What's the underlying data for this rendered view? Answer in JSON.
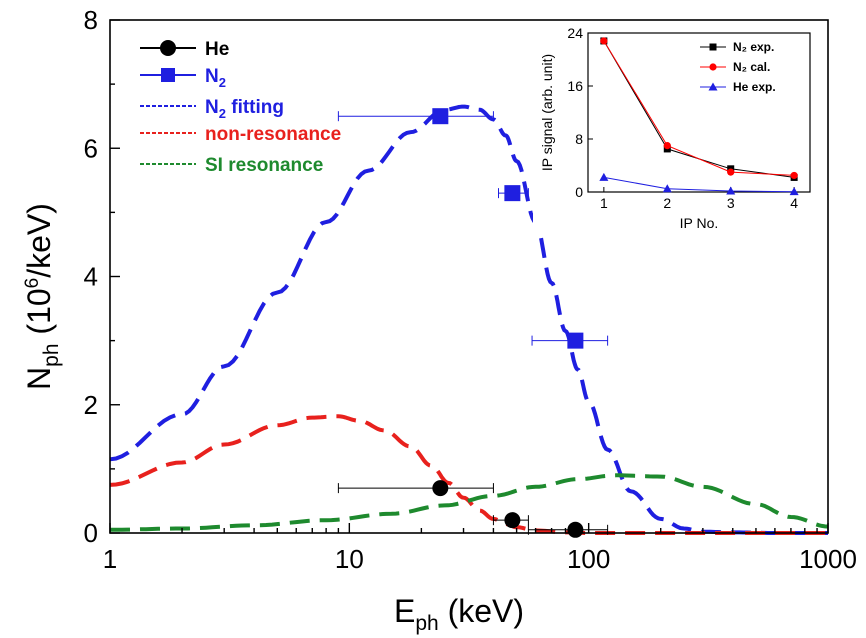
{
  "chart_data": [
    {
      "type": "scatter",
      "xlabel": {
        "main": "E",
        "sub": "ph",
        "unit": " (keV)"
      },
      "ylabel": {
        "main": "N",
        "sub": "ph",
        "unit_pre": " (10",
        "unit_sup": "6",
        "unit_post": "/keV)"
      },
      "xscale": "log",
      "xlim": [
        1,
        1000
      ],
      "ylim": [
        0,
        8
      ],
      "xticks": [
        1,
        10,
        100,
        1000
      ],
      "xtick_labels": [
        "1",
        "10",
        "100",
        "1000"
      ],
      "yticks": [
        0,
        2,
        4,
        6,
        8
      ],
      "ytick_labels": [
        "0",
        "2",
        "4",
        "6",
        "8"
      ],
      "grid": false,
      "legend_position": "top-left",
      "legend": [
        {
          "key": "he",
          "label": "He",
          "sub": "",
          "color": "#000000",
          "style": "line-marker",
          "marker": "circle"
        },
        {
          "key": "n2",
          "label": "N",
          "sub": "2",
          "color": "#1f1fe0",
          "style": "line-marker",
          "marker": "square"
        },
        {
          "key": "n2fit",
          "label": "N",
          "sub": "2",
          "suffix": " fitting",
          "color": "#1f1fe0",
          "style": "dashed"
        },
        {
          "key": "nonres",
          "label": "non-resonance",
          "sub": "",
          "color": "#e8211d",
          "style": "dashed"
        },
        {
          "key": "si",
          "label": "SI resonance",
          "sub": "",
          "color": "#1e8a2e",
          "style": "dashed"
        }
      ],
      "series": [
        {
          "key": "he",
          "kind": "points",
          "marker": "circle",
          "color": "#000000",
          "points": [
            {
              "x": 24,
              "y": 0.7,
              "xerr": [
                9,
                40
              ]
            },
            {
              "x": 48,
              "y": 0.2,
              "xerr": [
                40,
                56
              ]
            },
            {
              "x": 88,
              "y": 0.05,
              "xerr": [
                56,
                120
              ]
            }
          ]
        },
        {
          "key": "n2",
          "kind": "points",
          "marker": "square",
          "color": "#1f1fe0",
          "points": [
            {
              "x": 24,
              "y": 6.5,
              "xerr": [
                9,
                40
              ]
            },
            {
              "x": 48,
              "y": 5.3,
              "xerr": [
                42,
                56
              ]
            },
            {
              "x": 88,
              "y": 3.0,
              "xerr": [
                58,
                120
              ]
            }
          ]
        },
        {
          "key": "n2fit",
          "kind": "curve",
          "color": "#1f1fe0",
          "x": [
            1,
            2,
            3,
            5,
            8,
            12,
            18,
            25,
            30,
            35,
            40,
            45,
            50,
            60,
            70,
            80,
            90,
            100,
            120,
            150,
            200,
            250,
            300,
            400,
            600,
            1000
          ],
          "y": [
            1.15,
            1.85,
            2.6,
            3.75,
            4.85,
            5.65,
            6.25,
            6.6,
            6.65,
            6.6,
            6.45,
            6.2,
            5.8,
            4.85,
            3.9,
            3.15,
            2.55,
            2.05,
            1.3,
            0.65,
            0.22,
            0.07,
            0.02,
            0.01,
            0.0,
            0.0
          ]
        },
        {
          "key": "nonres",
          "kind": "curve",
          "color": "#e8211d",
          "x": [
            1,
            2,
            3,
            5,
            7,
            9,
            11,
            14,
            18,
            22,
            26,
            30,
            35,
            40,
            45,
            50,
            60,
            80,
            100,
            200,
            1000
          ],
          "y": [
            0.75,
            1.1,
            1.38,
            1.68,
            1.8,
            1.82,
            1.75,
            1.6,
            1.35,
            1.05,
            0.78,
            0.55,
            0.35,
            0.22,
            0.14,
            0.09,
            0.04,
            0.01,
            0.0,
            0.0,
            0.0
          ]
        },
        {
          "key": "si",
          "kind": "curve",
          "color": "#1e8a2e",
          "x": [
            1,
            2,
            4,
            8,
            15,
            25,
            40,
            60,
            90,
            130,
            200,
            300,
            500,
            700,
            1000
          ],
          "y": [
            0.05,
            0.07,
            0.12,
            0.2,
            0.3,
            0.43,
            0.58,
            0.72,
            0.84,
            0.9,
            0.88,
            0.72,
            0.45,
            0.25,
            0.1
          ]
        }
      ]
    },
    {
      "type": "line",
      "xlabel": "IP No.",
      "ylabel": "IP signal (arb. unit)",
      "xlim": [
        0.75,
        4.25
      ],
      "ylim": [
        0,
        24
      ],
      "xticks": [
        1,
        2,
        3,
        4
      ],
      "xtick_labels": [
        "1",
        "2",
        "3",
        "4"
      ],
      "yticks": [
        0,
        8,
        16,
        24
      ],
      "ytick_labels": [
        "0",
        "8",
        "16",
        "24"
      ],
      "legend_position": "top-right",
      "series": [
        {
          "key": "n2exp",
          "name": "N₂ exp.",
          "color": "#000000",
          "marker": "square",
          "x": [
            1,
            2,
            3,
            4
          ],
          "y": [
            22.8,
            6.5,
            3.5,
            2.2
          ]
        },
        {
          "key": "n2cal",
          "name": "N₂ cal.",
          "color": "#ff0000",
          "marker": "circle",
          "x": [
            1,
            2,
            3,
            4
          ],
          "y": [
            22.8,
            7.0,
            3.0,
            2.5
          ]
        },
        {
          "key": "heexp",
          "name": "He exp.",
          "color": "#1f1fe0",
          "marker": "triangle",
          "x": [
            1,
            2,
            3,
            4
          ],
          "y": [
            2.2,
            0.5,
            0.15,
            0.05
          ]
        }
      ]
    }
  ]
}
